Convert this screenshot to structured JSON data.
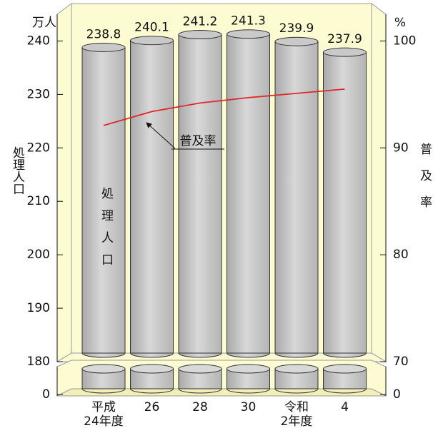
{
  "chart_data": {
    "type": "bar",
    "ylabel_unit": "万人",
    "y2label_unit": "%",
    "ylabel": "処理人口",
    "y2label": "普及率",
    "categories": [
      "平成\n24年度",
      "26",
      "28",
      "30",
      "令和\n2年度",
      "4"
    ],
    "series": [
      {
        "name": "処理人口",
        "type": "bar",
        "color": "#c9c9c9",
        "values": [
          238.8,
          240.1,
          241.2,
          241.3,
          239.9,
          237.9
        ]
      },
      {
        "name": "普及率",
        "type": "line",
        "axis": "y2",
        "color": "#e0262b",
        "values": [
          92.1,
          93.4,
          94.2,
          94.7,
          95.1,
          95.5
        ]
      }
    ],
    "ylim": [
      0,
      247
    ],
    "yticks": [
      0,
      180,
      190,
      200,
      210,
      220,
      230,
      240
    ],
    "y_break": [
      0,
      180
    ],
    "y2lim": [
      0,
      103.5
    ],
    "y2ticks": [
      0,
      70,
      80,
      90,
      100
    ],
    "y2_break": [
      0,
      70
    ]
  }
}
